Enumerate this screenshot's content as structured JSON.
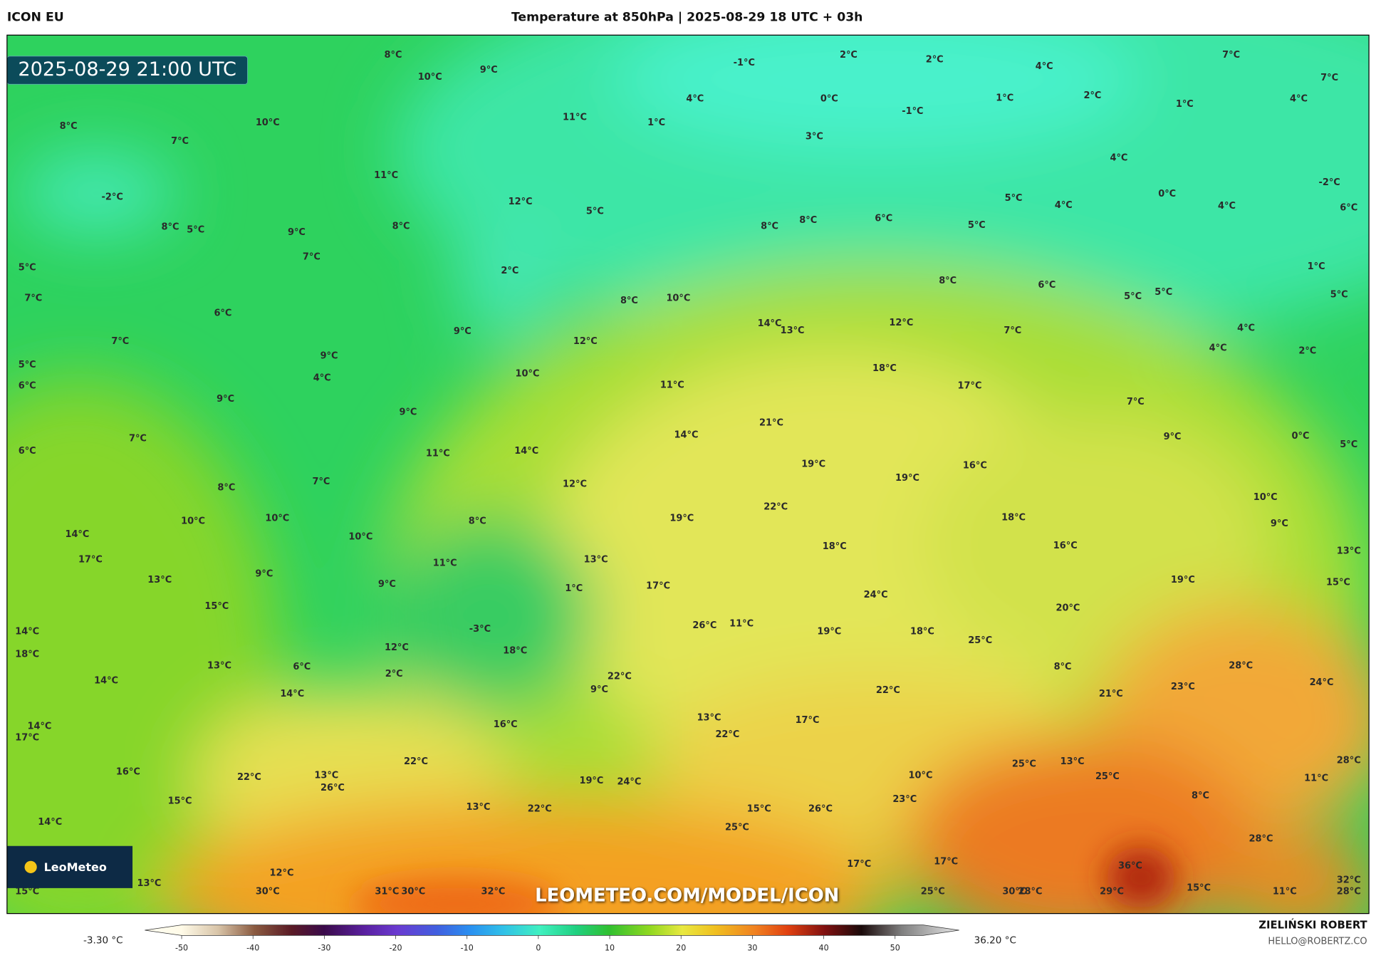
{
  "header": {
    "model": "ICON EU",
    "title": "Temperature at 850hPa | 2025-08-29 18 UTC + 03h"
  },
  "map": {
    "valid_time": "2025-08-29 21:00 UTC",
    "logo": "LeoMeteo",
    "watermark": "LEOMETEO.COM/MODEL/ICON",
    "labels": [
      "8°C",
      "9°C",
      "10°C",
      "-1°C",
      "2°C",
      "2°C",
      "4°C",
      "7°C",
      "7°C",
      "11°C",
      "1°C",
      "4°C",
      "0°C",
      "-1°C",
      "1°C",
      "2°C",
      "1°C",
      "4°C",
      "8°C",
      "10°C",
      "7°C",
      "3°C",
      "4°C",
      "11°C",
      "-2°C",
      "12°C",
      "5°C",
      "5°C",
      "4°C",
      "0°C",
      "4°C",
      "-2°C",
      "6°C",
      "8°C",
      "5°C",
      "9°C",
      "8°C",
      "7°C",
      "8°C",
      "8°C",
      "6°C",
      "5°C",
      "5°C",
      "2°C",
      "1°C",
      "7°C",
      "8°C",
      "6°C",
      "5°C",
      "5°C",
      "5°C",
      "8°C",
      "10°C",
      "6°C",
      "12°C",
      "14°C",
      "13°C",
      "7°C",
      "4°C",
      "7°C",
      "12°C",
      "9°C",
      "4°C",
      "2°C",
      "5°C",
      "9°C",
      "4°C",
      "18°C",
      "6°C",
      "10°C",
      "11°C",
      "17°C",
      "9°C",
      "9°C",
      "7°C",
      "21°C",
      "7°C",
      "14°C",
      "9°C",
      "0°C",
      "6°C",
      "11°C",
      "14°C",
      "19°C",
      "16°C",
      "5°C",
      "7°C",
      "12°C",
      "19°C",
      "8°C",
      "22°C",
      "10°C",
      "10°C",
      "19°C",
      "8°C",
      "18°C",
      "10°C",
      "9°C",
      "14°C",
      "10°C",
      "18°C",
      "16°C",
      "17°C",
      "11°C",
      "13°C",
      "13°C",
      "13°C",
      "9°C",
      "9°C",
      "1°C",
      "17°C",
      "19°C",
      "15°C",
      "15°C",
      "24°C",
      "20°C",
      "14°C",
      "26°C",
      "11°C",
      "19°C",
      "18°C",
      "-3°C",
      "25°C",
      "18°C",
      "12°C",
      "18°C",
      "13°C",
      "6°C",
      "2°C",
      "28°C",
      "8°C",
      "22°C",
      "23°C",
      "24°C",
      "14°C",
      "14°C",
      "9°C",
      "22°C",
      "21°C",
      "14°C",
      "17°C",
      "16°C",
      "13°C",
      "22°C",
      "17°C",
      "28°C",
      "16°C",
      "13°C",
      "22°C",
      "22°C",
      "26°C",
      "19°C",
      "24°C",
      "10°C",
      "25°C",
      "13°C",
      "25°C",
      "11°C",
      "15°C",
      "13°C",
      "22°C",
      "15°C",
      "26°C",
      "23°C",
      "8°C",
      "14°C",
      "25°C",
      "28°C",
      "17°C",
      "17°C",
      "36°C",
      "12°C",
      "13°C",
      "32°C",
      "15°C",
      "30°C",
      "31°C",
      "30°C",
      "32°C",
      "25°C",
      "30°C",
      "28°C",
      "29°C",
      "15°C",
      "11°C",
      "28°C"
    ]
  },
  "colorbar": {
    "min_label": "-3.30 °C",
    "max_label": "36.20 °C",
    "ticks": [
      -50,
      -40,
      -30,
      -20,
      -10,
      0,
      10,
      20,
      30,
      40,
      50
    ]
  },
  "footer": {
    "author": "ZIELIŃSKI ROBERT",
    "contact": "HELLO@ROBERTZ.CO"
  }
}
